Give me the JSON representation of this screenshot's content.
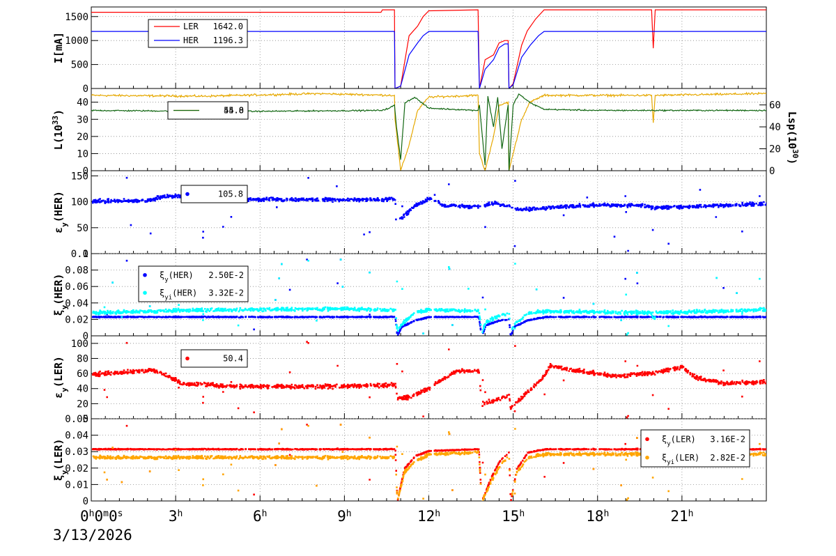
{
  "date_label": "3/13/2026",
  "x_ticks": [
    {
      "hour": 0,
      "label": "0",
      "units": [
        "h",
        "m",
        "s"
      ],
      "zeros": [
        "0",
        "0"
      ]
    },
    {
      "hour": 3,
      "label": "3"
    },
    {
      "hour": 6,
      "label": "6"
    },
    {
      "hour": 9,
      "label": "9"
    },
    {
      "hour": 12,
      "label": "12"
    },
    {
      "hour": 15,
      "label": "15"
    },
    {
      "hour": 18,
      "label": "18"
    },
    {
      "hour": 21,
      "label": "21"
    }
  ],
  "colors": {
    "LER": "#ff0000",
    "HER": "#0000ff",
    "lum": "#e6a800",
    "lsp": "#116611",
    "xi_her": "#0000ff",
    "xi_her_i": "#00ffff",
    "xi_ler": "#ff0000",
    "xi_ler_i": "#ffa500"
  },
  "chart_data": [
    {
      "type": "line",
      "ylabel": "I[mA]",
      "xlim": [
        0,
        24
      ],
      "ylim": [
        0,
        1700
      ],
      "yticks": [
        "0",
        "500",
        "1000",
        "1500"
      ],
      "series": [
        {
          "name": "LER",
          "value_label": "1642.0",
          "points": [
            [
              0,
              1590
            ],
            [
              10.3,
              1590
            ],
            [
              10.35,
              1640
            ],
            [
              10.78,
              1640
            ],
            [
              10.8,
              0
            ],
            [
              11.0,
              50
            ],
            [
              11.3,
              1100
            ],
            [
              11.6,
              1300
            ],
            [
              11.8,
              1500
            ],
            [
              12.0,
              1620
            ],
            [
              13.75,
              1640
            ],
            [
              13.8,
              0
            ],
            [
              14.0,
              600
            ],
            [
              14.3,
              700
            ],
            [
              14.5,
              950
            ],
            [
              14.7,
              1000
            ],
            [
              14.82,
              1000
            ],
            [
              14.85,
              0
            ],
            [
              15.0,
              100
            ],
            [
              15.3,
              900
            ],
            [
              15.5,
              1200
            ],
            [
              15.8,
              1450
            ],
            [
              16.1,
              1640
            ],
            [
              19.92,
              1640
            ],
            [
              19.98,
              840
            ],
            [
              20.05,
              1640
            ],
            [
              24,
              1640
            ]
          ]
        },
        {
          "name": "HER",
          "value_label": "1196.3",
          "points": [
            [
              0,
              1190
            ],
            [
              10.78,
              1190
            ],
            [
              10.8,
              0
            ],
            [
              11.0,
              50
            ],
            [
              11.3,
              700
            ],
            [
              11.6,
              950
            ],
            [
              11.8,
              1100
            ],
            [
              12.0,
              1190
            ],
            [
              13.75,
              1190
            ],
            [
              13.8,
              0
            ],
            [
              14.0,
              400
            ],
            [
              14.3,
              600
            ],
            [
              14.5,
              850
            ],
            [
              14.7,
              930
            ],
            [
              14.82,
              930
            ],
            [
              14.85,
              0
            ],
            [
              15.0,
              80
            ],
            [
              15.3,
              650
            ],
            [
              15.6,
              900
            ],
            [
              15.9,
              1100
            ],
            [
              16.1,
              1190
            ],
            [
              24,
              1190
            ]
          ]
        }
      ]
    },
    {
      "type": "line",
      "ylabel": "L(10^33)",
      "y2label": "Lsp(10^30)",
      "xlim": [
        0,
        24
      ],
      "ylim": [
        0,
        48
      ],
      "y2lim": [
        0,
        75
      ],
      "yticks": [
        "0",
        "10",
        "20",
        "30",
        "40"
      ],
      "y2ticks": [
        "0",
        "20",
        "40",
        "60"
      ],
      "series": [
        {
          "name": "",
          "value_label": "44.8",
          "axis": "left",
          "points": [
            [
              0,
              44
            ],
            [
              4,
              43.5
            ],
            [
              8,
              45
            ],
            [
              10.78,
              44
            ],
            [
              10.8,
              30
            ],
            [
              11.0,
              0
            ],
            [
              11.3,
              15
            ],
            [
              11.6,
              35
            ],
            [
              12.0,
              43
            ],
            [
              13.75,
              44
            ],
            [
              13.8,
              10
            ],
            [
              14.0,
              0
            ],
            [
              14.3,
              20
            ],
            [
              14.5,
              38
            ],
            [
              14.82,
              40
            ],
            [
              14.85,
              0
            ],
            [
              15.0,
              10
            ],
            [
              15.3,
              30
            ],
            [
              15.6,
              40
            ],
            [
              16.1,
              44
            ],
            [
              19.92,
              44
            ],
            [
              19.98,
              28
            ],
            [
              20.05,
              44
            ],
            [
              24,
              45
            ]
          ]
        },
        {
          "name": "",
          "value_label": "55.0",
          "axis": "right",
          "points": [
            [
              0,
              55
            ],
            [
              5,
              54
            ],
            [
              10.3,
              55
            ],
            [
              10.6,
              57
            ],
            [
              10.78,
              60
            ],
            [
              10.85,
              40
            ],
            [
              11.0,
              10
            ],
            [
              11.15,
              62
            ],
            [
              11.5,
              67
            ],
            [
              12.0,
              57
            ],
            [
              13.75,
              55
            ],
            [
              13.8,
              60
            ],
            [
              14.0,
              5
            ],
            [
              14.1,
              68
            ],
            [
              14.3,
              40
            ],
            [
              14.45,
              67
            ],
            [
              14.6,
              20
            ],
            [
              14.82,
              60
            ],
            [
              14.85,
              0
            ],
            [
              15.0,
              60
            ],
            [
              15.2,
              70
            ],
            [
              15.6,
              62
            ],
            [
              16.1,
              56
            ],
            [
              18,
              55
            ],
            [
              19.98,
              55
            ],
            [
              24,
              55
            ]
          ]
        }
      ]
    },
    {
      "type": "scatter",
      "ylabel": "εy(HER)",
      "xlim": [
        0,
        24
      ],
      "ylim": [
        0,
        160
      ],
      "yticks": [
        "0",
        "50",
        "100",
        "150"
      ],
      "series": [
        {
          "name": "",
          "value_label": "105.8",
          "profile": [
            [
              0,
              103
            ],
            [
              2,
              104
            ],
            [
              2.5,
              112
            ],
            [
              3.2,
              113
            ],
            [
              4,
              109
            ],
            [
              6,
              106
            ],
            [
              9,
              106
            ],
            [
              10.78,
              106
            ],
            [
              10.8,
              68
            ],
            [
              11.0,
              70
            ],
            [
              11.5,
              95
            ],
            [
              12.0,
              108
            ],
            [
              12.5,
              95
            ],
            [
              13.75,
              92
            ],
            [
              14.0,
              95
            ],
            [
              14.3,
              100
            ],
            [
              14.82,
              92
            ],
            [
              15.0,
              88
            ],
            [
              15.5,
              87
            ],
            [
              16.5,
              92
            ],
            [
              18,
              95
            ],
            [
              19.5,
              95
            ],
            [
              20,
              90
            ],
            [
              21,
              92
            ],
            [
              23,
              96
            ],
            [
              24,
              98
            ]
          ],
          "gaps": [
            [
              10.82,
              10.9
            ],
            [
              13.8,
              13.95
            ],
            [
              14.85,
              14.9
            ]
          ]
        }
      ]
    },
    {
      "type": "scatter",
      "ylabel": "ξy(HER)",
      "xlim": [
        0,
        24
      ],
      "ylim": [
        0,
        0.1
      ],
      "yticks": [
        "0",
        "0.02",
        "0.04",
        "0.06",
        "0.08",
        "0.1"
      ],
      "series": [
        {
          "name": "ξy(HER)",
          "value_label": "2.50E-2",
          "profile": [
            [
              0,
              0.024
            ],
            [
              10.78,
              0.024
            ],
            [
              10.85,
              0.0
            ],
            [
              11.0,
              0.012
            ],
            [
              11.5,
              0.02
            ],
            [
              12.0,
              0.024
            ],
            [
              13.75,
              0.024
            ],
            [
              13.85,
              0.0
            ],
            [
              14.0,
              0.014
            ],
            [
              14.5,
              0.02
            ],
            [
              14.82,
              0.021
            ],
            [
              14.88,
              0.0
            ],
            [
              15.0,
              0.012
            ],
            [
              15.5,
              0.02
            ],
            [
              16.1,
              0.024
            ],
            [
              24,
              0.024
            ]
          ]
        },
        {
          "name": "ξyi(HER)",
          "value_label": "3.32E-2",
          "profile": [
            [
              0,
              0.029
            ],
            [
              3,
              0.032
            ],
            [
              6,
              0.033
            ],
            [
              9,
              0.034
            ],
            [
              10.78,
              0.032
            ],
            [
              10.85,
              0.005
            ],
            [
              11.0,
              0.015
            ],
            [
              11.5,
              0.03
            ],
            [
              12.0,
              0.033
            ],
            [
              13.75,
              0.031
            ],
            [
              13.85,
              0.005
            ],
            [
              14.0,
              0.018
            ],
            [
              14.5,
              0.026
            ],
            [
              14.82,
              0.028
            ],
            [
              14.88,
              0.005
            ],
            [
              15.0,
              0.015
            ],
            [
              15.5,
              0.029
            ],
            [
              16.1,
              0.031
            ],
            [
              19.9,
              0.029
            ],
            [
              19.95,
              0.018
            ],
            [
              20.05,
              0.029
            ],
            [
              24,
              0.033
            ]
          ]
        }
      ]
    },
    {
      "type": "scatter",
      "ylabel": "εy(LER)",
      "xlim": [
        0,
        24
      ],
      "ylim": [
        0,
        110
      ],
      "yticks": [
        "0",
        "20",
        "40",
        "60",
        "80",
        "100"
      ],
      "series": [
        {
          "name": "",
          "value_label": "50.4",
          "profile": [
            [
              0,
              60
            ],
            [
              1,
              62
            ],
            [
              2.2,
              66
            ],
            [
              2.7,
              58
            ],
            [
              3.2,
              48
            ],
            [
              5,
              44
            ],
            [
              8,
              44
            ],
            [
              10.78,
              46
            ],
            [
              10.85,
              28
            ],
            [
              11.3,
              30
            ],
            [
              12.0,
              42
            ],
            [
              12.5,
              55
            ],
            [
              13.0,
              65
            ],
            [
              13.75,
              64
            ],
            [
              13.85,
              20
            ],
            [
              14.3,
              26
            ],
            [
              14.82,
              32
            ],
            [
              14.88,
              15
            ],
            [
              15.3,
              30
            ],
            [
              16.0,
              55
            ],
            [
              16.3,
              72
            ],
            [
              17,
              66
            ],
            [
              18.5,
              58
            ],
            [
              20,
              62
            ],
            [
              21,
              70
            ],
            [
              21.5,
              55
            ],
            [
              22.5,
              48
            ],
            [
              24,
              50
            ]
          ]
        }
      ]
    },
    {
      "type": "scatter",
      "ylabel": "ξy(LER)",
      "xlim": [
        0,
        24
      ],
      "ylim": [
        0,
        0.05
      ],
      "yticks": [
        "0",
        "0.01",
        "0.02",
        "0.03",
        "0.04",
        "0.05"
      ],
      "series": [
        {
          "name": "ξy(LER)",
          "value_label": "3.16E-2",
          "profile": [
            [
              0,
              0.032
            ],
            [
              10.78,
              0.032
            ],
            [
              10.85,
              0.0
            ],
            [
              11.1,
              0.02
            ],
            [
              11.5,
              0.028
            ],
            [
              12.0,
              0.031
            ],
            [
              13.75,
              0.032
            ],
            [
              13.85,
              0.0
            ],
            [
              14.2,
              0.015
            ],
            [
              14.5,
              0.025
            ],
            [
              14.82,
              0.03
            ],
            [
              14.88,
              0.0
            ],
            [
              15.1,
              0.02
            ],
            [
              15.5,
              0.03
            ],
            [
              16.1,
              0.032
            ],
            [
              24,
              0.032
            ]
          ]
        },
        {
          "name": "ξyi(LER)",
          "value_label": "2.82E-2",
          "profile": [
            [
              0,
              0.027
            ],
            [
              10.78,
              0.027
            ],
            [
              10.85,
              0.0
            ],
            [
              11.1,
              0.018
            ],
            [
              11.5,
              0.025
            ],
            [
              12.0,
              0.029
            ],
            [
              13.75,
              0.03
            ],
            [
              13.85,
              0.0
            ],
            [
              14.2,
              0.013
            ],
            [
              14.5,
              0.022
            ],
            [
              14.82,
              0.028
            ],
            [
              14.88,
              0.0
            ],
            [
              15.1,
              0.018
            ],
            [
              15.5,
              0.027
            ],
            [
              16.1,
              0.029
            ],
            [
              24,
              0.029
            ]
          ]
        }
      ]
    }
  ]
}
